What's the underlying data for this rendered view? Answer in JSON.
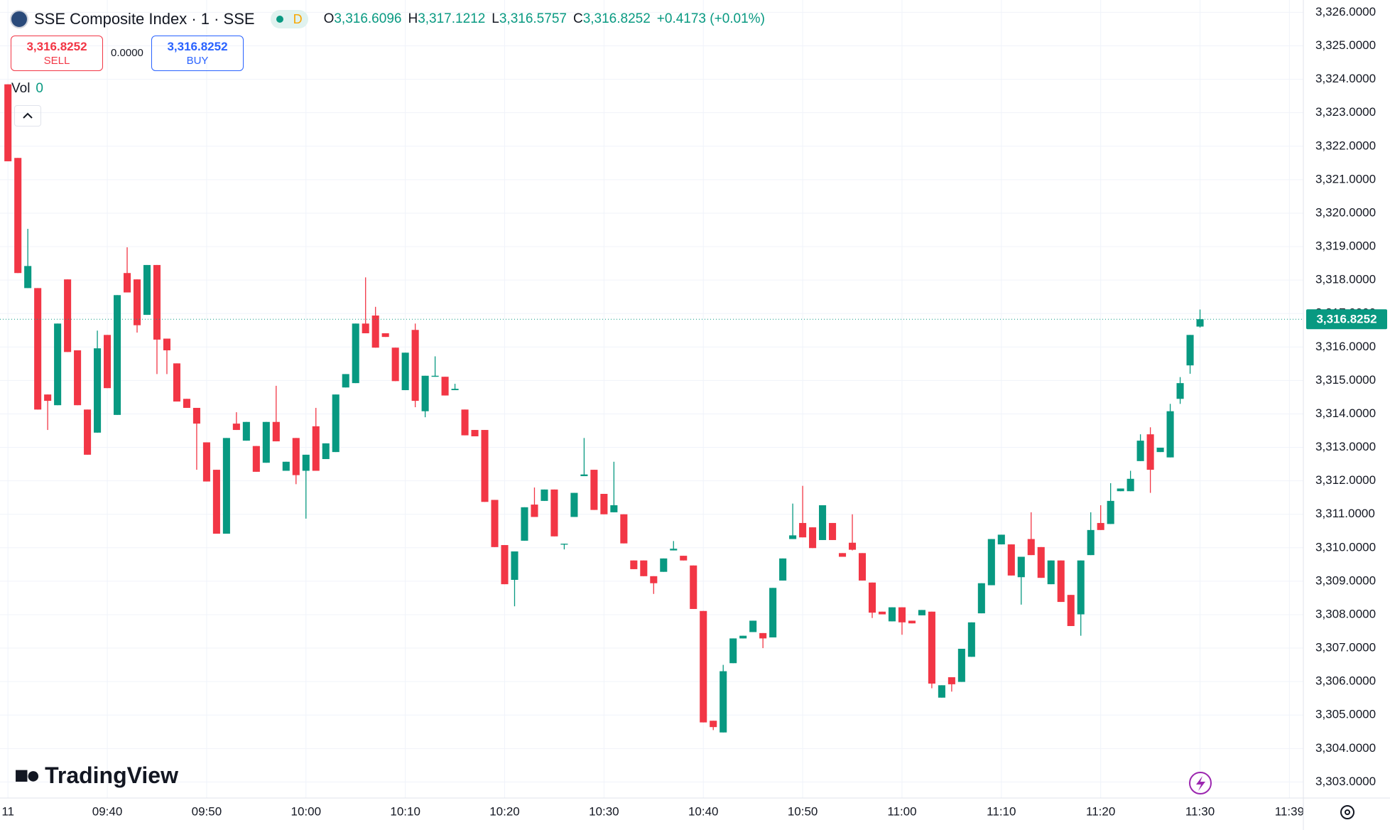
{
  "header": {
    "symbol": "SSE Composite Index · 1 · SSE",
    "badge": "D",
    "ohlc": [
      {
        "key": "O",
        "value": "3,316.6096"
      },
      {
        "key": "H",
        "value": "3,317.1212"
      },
      {
        "key": "L",
        "value": "3,316.5757"
      },
      {
        "key": "C",
        "value": "3,316.8252"
      }
    ],
    "change": "+0.4173 (+0.01%)"
  },
  "trade": {
    "sell_price": "3,316.8252",
    "sell_label": "SELL",
    "spread": "0.0000",
    "buy_price": "3,316.8252",
    "buy_label": "BUY"
  },
  "volume": {
    "label": "Vol",
    "value": "0"
  },
  "logo": "TradingView",
  "chart_data": {
    "type": "candlestick",
    "up_color": "#089981",
    "down_color": "#f23645",
    "grid": true,
    "last_price_label": "3,316.8252",
    "xlim": [
      -0.8,
      130.4
    ],
    "ylim": [
      3302.52,
      3326.37
    ],
    "xticks": [
      {
        "value": 0,
        "label": "11"
      },
      {
        "value": 10,
        "label": "09:40"
      },
      {
        "value": 20,
        "label": "09:50"
      },
      {
        "value": 30,
        "label": "10:00"
      },
      {
        "value": 40,
        "label": "10:10"
      },
      {
        "value": 50,
        "label": "10:20"
      },
      {
        "value": 60,
        "label": "10:30"
      },
      {
        "value": 70,
        "label": "10:40"
      },
      {
        "value": 80,
        "label": "10:50"
      },
      {
        "value": 90,
        "label": "11:00"
      },
      {
        "value": 100,
        "label": "11:10"
      },
      {
        "value": 110,
        "label": "11:20"
      },
      {
        "value": 120,
        "label": "11:30"
      },
      {
        "value": 129,
        "label": "11:39"
      }
    ],
    "yticks": [
      {
        "value": 3303,
        "label": "3,303.0000"
      },
      {
        "value": 3304,
        "label": "3,304.0000"
      },
      {
        "value": 3305,
        "label": "3,305.0000"
      },
      {
        "value": 3306,
        "label": "3,306.0000"
      },
      {
        "value": 3307,
        "label": "3,307.0000"
      },
      {
        "value": 3308,
        "label": "3,308.0000"
      },
      {
        "value": 3309,
        "label": "3,309.0000"
      },
      {
        "value": 3310,
        "label": "3,310.0000"
      },
      {
        "value": 3311,
        "label": "3,311.0000"
      },
      {
        "value": 3312,
        "label": "3,312.0000"
      },
      {
        "value": 3313,
        "label": "3,313.0000"
      },
      {
        "value": 3314,
        "label": "3,314.0000"
      },
      {
        "value": 3315,
        "label": "3,315.0000"
      },
      {
        "value": 3316,
        "label": "3,316.0000"
      },
      {
        "value": 3317,
        "label": "3,317.0000"
      },
      {
        "value": 3318,
        "label": "3,318.0000"
      },
      {
        "value": 3319,
        "label": "3,319.0000"
      },
      {
        "value": 3320,
        "label": "3,320.0000"
      },
      {
        "value": 3321,
        "label": "3,321.0000"
      },
      {
        "value": 3322,
        "label": "3,322.0000"
      },
      {
        "value": 3323,
        "label": "3,323.0000"
      },
      {
        "value": 3324,
        "label": "3,324.0000"
      },
      {
        "value": 3325,
        "label": "3,325.0000"
      },
      {
        "value": 3326,
        "label": "3,326.0000"
      }
    ],
    "open": [
      3323.85,
      3321.65,
      3317.76,
      3317.76,
      3314.58,
      3314.26,
      3318.02,
      3315.9,
      3314.13,
      3313.44,
      3316.36,
      3313.97,
      3318.21,
      3318.02,
      3316.96,
      3318.45,
      3316.25,
      3315.51,
      3314.45,
      3314.18,
      3313.15,
      3312.33,
      3310.42,
      3313.71,
      3313.2,
      3313.04,
      3312.54,
      3313.76,
      3312.3,
      3313.28,
      3312.3,
      3313.63,
      3312.65,
      3312.86,
      3314.79,
      3314.92,
      3316.7,
      3316.94,
      3316.41,
      3315.98,
      3314.71,
      3316.51,
      3314.08,
      3315.11,
      3315.11,
      3314.71,
      3314.13,
      3313.52,
      3313.52,
      3311.43,
      3310.08,
      3309.04,
      3310.21,
      3311.29,
      3311.4,
      3311.74,
      3310.1,
      3310.92,
      3312.14,
      3312.33,
      3311.61,
      3311.06,
      3311.0,
      3309.62,
      3309.62,
      3309.15,
      3309.28,
      3309.92,
      3309.76,
      3309.47,
      3308.11,
      3304.83,
      3304.48,
      3306.55,
      3307.29,
      3307.48,
      3307.45,
      3307.32,
      3309.02,
      3310.26,
      3310.74,
      3310.61,
      3310.23,
      3310.74,
      3309.84,
      3310.15,
      3309.84,
      3308.96,
      3308.09,
      3307.8,
      3308.22,
      3307.82,
      3307.98,
      3308.09,
      3305.52,
      3306.13,
      3305.99,
      3306.74,
      3308.04,
      3308.88,
      3310.1,
      3310.1,
      3309.12,
      3310.26,
      3310.02,
      3308.91,
      3309.62,
      3308.59,
      3308.01,
      3309.78,
      3310.74,
      3310.71,
      3311.69,
      3311.69,
      3312.59,
      3313.39,
      3312.86,
      3312.7,
      3314.45,
      3315.45,
      3316.61
    ],
    "high": [
      3323.85,
      3321.65,
      3319.53,
      3317.76,
      3314.58,
      3316.7,
      3318.02,
      3315.9,
      3314.13,
      3316.49,
      3316.36,
      3317.55,
      3318.98,
      3318.02,
      3318.45,
      3318.45,
      3316.25,
      3315.51,
      3314.45,
      3314.18,
      3313.15,
      3312.33,
      3313.28,
      3314.05,
      3313.76,
      3313.04,
      3313.76,
      3314.84,
      3312.57,
      3313.28,
      3312.78,
      3314.18,
      3313.12,
      3314.58,
      3315.19,
      3316.7,
      3318.08,
      3317.2,
      3316.41,
      3315.98,
      3315.83,
      3316.7,
      3315.14,
      3315.72,
      3315.11,
      3314.9,
      3314.13,
      3313.52,
      3313.52,
      3311.43,
      3310.08,
      3309.89,
      3311.21,
      3311.8,
      3311.74,
      3311.74,
      3310.12,
      3311.64,
      3313.28,
      3312.33,
      3311.61,
      3312.57,
      3311.0,
      3309.62,
      3309.62,
      3309.15,
      3309.68,
      3310.2,
      3309.76,
      3309.47,
      3308.11,
      3304.83,
      3306.5,
      3307.29,
      3307.37,
      3307.82,
      3307.45,
      3308.8,
      3309.68,
      3311.32,
      3311.85,
      3310.61,
      3311.27,
      3310.74,
      3309.84,
      3311.0,
      3309.84,
      3308.96,
      3308.09,
      3308.22,
      3308.22,
      3307.82,
      3308.14,
      3308.09,
      3305.89,
      3306.13,
      3306.98,
      3307.77,
      3308.94,
      3310.26,
      3310.39,
      3310.1,
      3309.73,
      3311.06,
      3310.02,
      3309.62,
      3309.62,
      3308.59,
      3309.62,
      3311.06,
      3311.27,
      3311.93,
      3311.77,
      3312.3,
      3313.39,
      3313.6,
      3312.99,
      3314.3,
      3315.1,
      3316.36,
      3317.12
    ],
    "low": [
      3321.55,
      3318.21,
      3317.76,
      3314.13,
      3313.52,
      3314.26,
      3315.85,
      3314.26,
      3312.78,
      3313.44,
      3314.77,
      3313.97,
      3317.63,
      3316.43,
      3316.96,
      3315.19,
      3315.19,
      3314.37,
      3314.18,
      3312.33,
      3311.98,
      3310.42,
      3310.42,
      3313.52,
      3313.2,
      3312.27,
      3312.54,
      3313.18,
      3312.3,
      3311.9,
      3310.87,
      3312.3,
      3312.65,
      3312.86,
      3314.79,
      3314.92,
      3316.41,
      3315.98,
      3316.3,
      3314.98,
      3314.71,
      3314.2,
      3313.9,
      3315.11,
      3314.55,
      3314.71,
      3313.36,
      3313.33,
      3311.37,
      3310.02,
      3308.91,
      3308.25,
      3310.21,
      3310.92,
      3311.4,
      3310.34,
      3309.95,
      3310.92,
      3312.14,
      3311.13,
      3311.0,
      3311.06,
      3310.13,
      3309.36,
      3309.15,
      3308.62,
      3309.28,
      3309.92,
      3309.62,
      3308.17,
      3304.78,
      3304.55,
      3304.48,
      3306.55,
      3307.29,
      3307.48,
      3307.0,
      3307.32,
      3309.02,
      3310.26,
      3310.31,
      3309.99,
      3310.23,
      3310.23,
      3309.73,
      3309.92,
      3309.02,
      3307.9,
      3308.01,
      3307.8,
      3307.4,
      3307.74,
      3307.98,
      3305.8,
      3305.52,
      3305.7,
      3305.99,
      3306.74,
      3308.04,
      3308.88,
      3310.1,
      3309.17,
      3308.3,
      3309.78,
      3309.1,
      3308.91,
      3308.38,
      3307.66,
      3307.37,
      3309.78,
      3310.53,
      3310.71,
      3311.69,
      3311.69,
      3312.59,
      3311.64,
      3312.86,
      3312.7,
      3314.3,
      3315.2,
      3316.58
    ],
    "close": [
      3321.55,
      3318.21,
      3318.42,
      3314.13,
      3314.39,
      3316.7,
      3315.85,
      3314.26,
      3312.78,
      3315.96,
      3314.77,
      3317.55,
      3317.63,
      3316.65,
      3318.45,
      3316.22,
      3315.9,
      3314.37,
      3314.18,
      3313.71,
      3311.98,
      3310.42,
      3313.28,
      3313.52,
      3313.76,
      3312.27,
      3313.76,
      3313.18,
      3312.57,
      3312.17,
      3312.78,
      3312.3,
      3313.12,
      3314.58,
      3315.19,
      3316.7,
      3316.41,
      3315.98,
      3316.3,
      3314.98,
      3315.83,
      3314.39,
      3315.14,
      3315.14,
      3314.55,
      3314.75,
      3313.36,
      3313.33,
      3311.37,
      3310.02,
      3308.91,
      3309.89,
      3311.21,
      3310.92,
      3311.74,
      3310.34,
      3310.12,
      3311.64,
      3312.19,
      3311.13,
      3311.0,
      3311.27,
      3310.13,
      3309.36,
      3309.15,
      3308.94,
      3309.68,
      3309.97,
      3309.62,
      3308.17,
      3304.78,
      3304.64,
      3306.31,
      3307.29,
      3307.37,
      3307.82,
      3307.29,
      3308.8,
      3309.68,
      3310.37,
      3310.31,
      3309.99,
      3311.27,
      3310.23,
      3309.73,
      3309.94,
      3309.02,
      3308.06,
      3308.01,
      3308.22,
      3307.77,
      3307.74,
      3308.14,
      3305.94,
      3305.89,
      3305.92,
      3306.98,
      3307.77,
      3308.94,
      3310.26,
      3310.39,
      3309.17,
      3309.73,
      3309.78,
      3309.1,
      3309.62,
      3308.38,
      3307.66,
      3309.62,
      3310.53,
      3310.53,
      3311.4,
      3311.77,
      3312.06,
      3313.2,
      3312.33,
      3312.99,
      3314.08,
      3314.92,
      3316.36,
      3316.83
    ]
  }
}
